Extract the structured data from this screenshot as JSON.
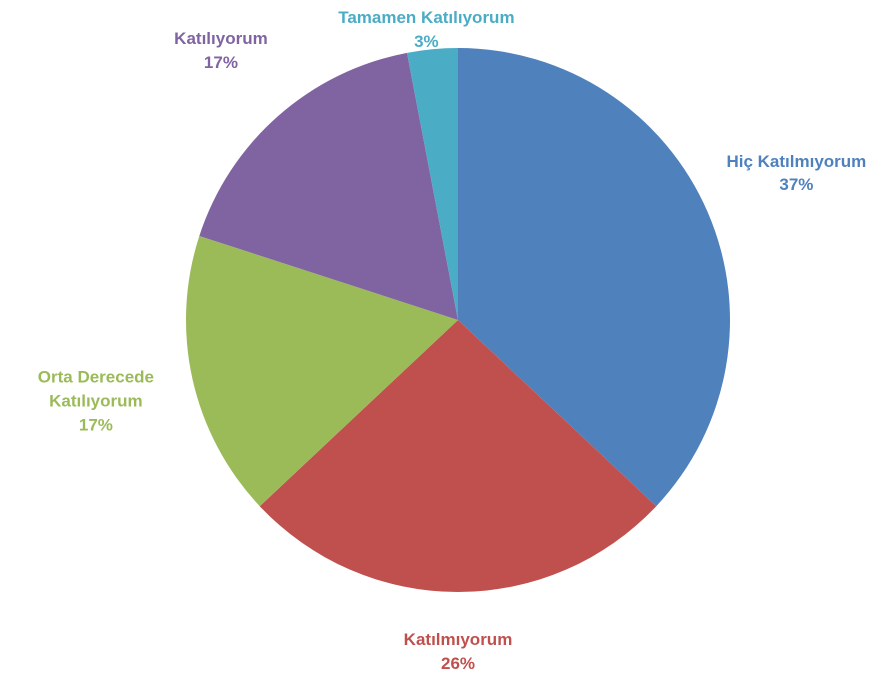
{
  "chart_data": {
    "type": "pie",
    "categories": [
      "Hiç Katılmıyorum",
      "Katılmıyorum",
      "Orta Derecede Katılıyorum",
      "Katılıyorum",
      "Tamamen Katılıyorum"
    ],
    "values": [
      37,
      26,
      17,
      17,
      3
    ],
    "value_labels": [
      "37%",
      "26%",
      "17%",
      "17%",
      "3%"
    ],
    "colors": [
      "#4f81bd",
      "#c0504d",
      "#9bbb59",
      "#8064a2",
      "#4bacc6"
    ]
  }
}
